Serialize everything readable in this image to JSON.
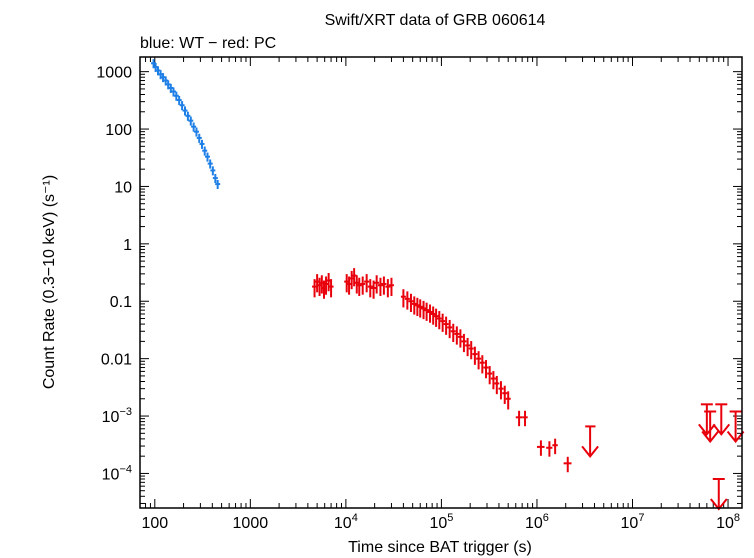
{
  "chart_data": {
    "type": "scatter",
    "title": "Swift/XRT data of GRB 060614",
    "subtitle": "blue: WT − red: PC",
    "xlabel": "Time since BAT trigger (s)",
    "ylabel": "Count Rate (0.3−10 keV) (s⁻¹)",
    "xscale": "log",
    "yscale": "log",
    "xlim": [
      70,
      140000000
    ],
    "ylim": [
      2.5e-05,
      1800
    ],
    "grid": false,
    "x_ticks": [
      {
        "value": 100,
        "label": "100"
      },
      {
        "value": 1000,
        "label": "1000"
      },
      {
        "value": 10000,
        "base": "10",
        "exp": "4"
      },
      {
        "value": 100000,
        "base": "10",
        "exp": "5"
      },
      {
        "value": 1000000,
        "base": "10",
        "exp": "6"
      },
      {
        "value": 10000000,
        "base": "10",
        "exp": "7"
      },
      {
        "value": 100000000,
        "base": "10",
        "exp": "8"
      }
    ],
    "y_ticks": [
      {
        "value": 1000,
        "label": "1000"
      },
      {
        "value": 100,
        "label": "100"
      },
      {
        "value": 10,
        "label": "10"
      },
      {
        "value": 1,
        "label": "1"
      },
      {
        "value": 0.1,
        "label": "0.1"
      },
      {
        "value": 0.01,
        "label": "0.01"
      },
      {
        "value": 0.001,
        "base": "10",
        "exp": "−3"
      },
      {
        "value": 0.0001,
        "base": "10",
        "exp": "−4"
      }
    ],
    "series": [
      {
        "mode": "WT",
        "color": "#1e7fe6",
        "x": [
          97,
          102,
          108,
          115,
          122,
          130,
          138,
          147,
          157,
          168,
          180,
          193,
          207,
          222,
          238,
          255,
          273,
          292,
          312,
          333,
          356,
          380,
          405,
          430,
          455
        ],
        "y": [
          1400,
          1200,
          1050,
          900,
          800,
          700,
          600,
          520,
          450,
          380,
          320,
          260,
          210,
          170,
          140,
          110,
          90,
          70,
          55,
          42,
          33,
          25,
          19,
          14,
          11
        ],
        "yerr_frac": 0.18
      },
      {
        "mode": "PC",
        "color": "#e8000b",
        "x": [
          4700,
          5000,
          5300,
          5600,
          5900,
          6200,
          6600,
          7000,
          10200,
          10800,
          11500,
          12200,
          13000,
          13800,
          15000,
          16500,
          18000,
          19500,
          21000,
          23000,
          25000,
          27500,
          30000,
          40000,
          44000,
          48000,
          52000,
          56000,
          60000,
          65000,
          70000,
          76000,
          82000,
          88000,
          95000,
          103000,
          112000,
          122000,
          133000,
          145000,
          158000,
          172000,
          188000,
          205000,
          224000,
          245000,
          268000,
          293000,
          320000,
          350000,
          380000,
          420000,
          460000,
          500000
        ],
        "y": [
          0.18,
          0.22,
          0.19,
          0.21,
          0.17,
          0.2,
          0.23,
          0.18,
          0.22,
          0.2,
          0.25,
          0.28,
          0.21,
          0.19,
          0.2,
          0.22,
          0.18,
          0.17,
          0.21,
          0.19,
          0.2,
          0.18,
          0.19,
          0.12,
          0.11,
          0.1,
          0.09,
          0.085,
          0.08,
          0.075,
          0.07,
          0.065,
          0.06,
          0.055,
          0.05,
          0.045,
          0.04,
          0.035,
          0.03,
          0.027,
          0.024,
          0.02,
          0.017,
          0.015,
          0.012,
          0.01,
          0.0085,
          0.007,
          0.0055,
          0.0045,
          0.0037,
          0.003,
          0.0025,
          0.002
        ],
        "yerr_frac": 0.35
      },
      {
        "mode": "PC (late bins)",
        "color": "#e8000b",
        "x": [
          650000,
          750000,
          1100000,
          1350000,
          1550000,
          2100000
        ],
        "xerr_lo": [
          600000,
          700000,
          1000000,
          1250000,
          1450000,
          1900000
        ],
        "xerr_hi": [
          700000,
          800000,
          1200000,
          1450000,
          1650000,
          2300000
        ],
        "y": [
          0.00095,
          0.00095,
          0.00029,
          0.00028,
          0.00031,
          0.00015
        ],
        "yerr_frac": 0.3
      },
      {
        "mode": "upper limits",
        "color": "#e8000b",
        "points": [
          {
            "x": 3600000,
            "y": 0.00066,
            "xlo": 3200000,
            "xhi": 4100000
          },
          {
            "x": 60000000,
            "y": 0.0016
          },
          {
            "x": 85000000,
            "y": 0.0016
          },
          {
            "x": 120000000,
            "y": 0.0012
          },
          {
            "x": 65000000,
            "y": 0.0012
          },
          {
            "x": 80000000,
            "y": 8e-05
          }
        ]
      }
    ]
  }
}
